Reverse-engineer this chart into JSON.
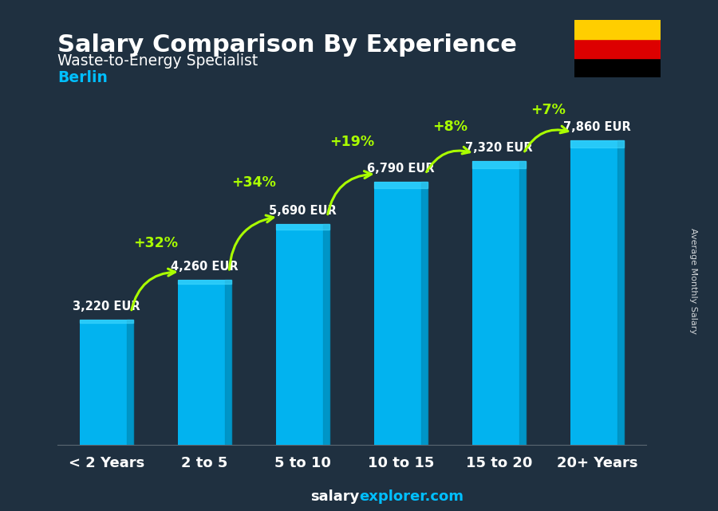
{
  "title": "Salary Comparison By Experience",
  "subtitle": "Waste-to-Energy Specialist",
  "city": "Berlin",
  "categories": [
    "< 2 Years",
    "2 to 5",
    "5 to 10",
    "10 to 15",
    "15 to 20",
    "20+ Years"
  ],
  "values": [
    3220,
    4260,
    5690,
    6790,
    7320,
    7860
  ],
  "value_labels": [
    "3,220 EUR",
    "4,260 EUR",
    "5,690 EUR",
    "6,790 EUR",
    "7,320 EUR",
    "7,860 EUR"
  ],
  "pct_changes": [
    "+32%",
    "+34%",
    "+19%",
    "+8%",
    "+7%"
  ],
  "bar_color": "#00BFFF",
  "bar_color_dark": "#0090C0",
  "pct_color": "#AAFF00",
  "title_color": "#FFFFFF",
  "subtitle_color": "#FFFFFF",
  "city_color": "#00BFFF",
  "label_color": "#FFFFFF",
  "footer_text": "salaryexplorer.com",
  "footer_salary": "Average Monthly Salary",
  "bg_color": "#2a3a4a",
  "ylim": [
    0,
    9500
  ]
}
